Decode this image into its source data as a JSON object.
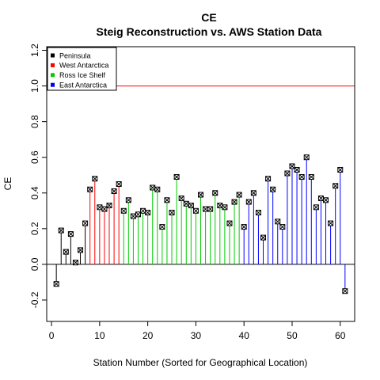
{
  "chart_data": {
    "type": "stem",
    "title": "CE",
    "subtitle": "Steig Reconstruction vs. AWS Station Data",
    "xlabel": "Station Number (Sorted for Geographical Location)",
    "ylabel": "CE",
    "xlim": [
      -1,
      63
    ],
    "ylim": [
      -0.32,
      1.22
    ],
    "xticks": [
      0,
      10,
      20,
      30,
      40,
      50,
      60
    ],
    "yticks": [
      -0.2,
      0.0,
      0.2,
      0.4,
      0.6,
      0.8,
      1.0,
      1.2
    ],
    "xtick_labels": [
      "0",
      "10",
      "20",
      "30",
      "40",
      "50",
      "60"
    ],
    "ytick_labels": [
      "-0.2",
      "0.0",
      "0.2",
      "0.4",
      "0.6",
      "0.8",
      "1.0",
      "1.2"
    ],
    "hlines": [
      {
        "y": 0,
        "color": "#000000"
      },
      {
        "y": 1,
        "color": "#ff0000"
      }
    ],
    "legend": {
      "position": "top-left",
      "entries": [
        {
          "label": "Peninsula",
          "color": "#000000"
        },
        {
          "label": "West Antarctica",
          "color": "#ff0000"
        },
        {
          "label": "Ross Ice Shelf",
          "color": "#00cd00"
        },
        {
          "label": "East Antarctica",
          "color": "#0000ff"
        }
      ]
    },
    "colors": {
      "Peninsula": "#000000",
      "West Antarctica": "#ff0000",
      "Ross Ice Shelf": "#00cd00",
      "East Antarctica": "#0000ff"
    },
    "points": [
      {
        "x": 1,
        "y": -0.11,
        "group": "Peninsula"
      },
      {
        "x": 2,
        "y": 0.19,
        "group": "Peninsula"
      },
      {
        "x": 3,
        "y": 0.07,
        "group": "Peninsula"
      },
      {
        "x": 4,
        "y": 0.17,
        "group": "Peninsula"
      },
      {
        "x": 5,
        "y": 0.01,
        "group": "Peninsula"
      },
      {
        "x": 6,
        "y": 0.08,
        "group": "Peninsula"
      },
      {
        "x": 7,
        "y": 0.23,
        "group": "Peninsula"
      },
      {
        "x": 8,
        "y": 0.42,
        "group": "West Antarctica"
      },
      {
        "x": 9,
        "y": 0.48,
        "group": "West Antarctica"
      },
      {
        "x": 10,
        "y": 0.32,
        "group": "West Antarctica"
      },
      {
        "x": 11,
        "y": 0.31,
        "group": "West Antarctica"
      },
      {
        "x": 12,
        "y": 0.33,
        "group": "West Antarctica"
      },
      {
        "x": 13,
        "y": 0.41,
        "group": "West Antarctica"
      },
      {
        "x": 14,
        "y": 0.45,
        "group": "West Antarctica"
      },
      {
        "x": 15,
        "y": 0.3,
        "group": "Ross Ice Shelf"
      },
      {
        "x": 16,
        "y": 0.36,
        "group": "Ross Ice Shelf"
      },
      {
        "x": 17,
        "y": 0.27,
        "group": "Ross Ice Shelf"
      },
      {
        "x": 18,
        "y": 0.28,
        "group": "Ross Ice Shelf"
      },
      {
        "x": 19,
        "y": 0.3,
        "group": "Ross Ice Shelf"
      },
      {
        "x": 20,
        "y": 0.29,
        "group": "Ross Ice Shelf"
      },
      {
        "x": 21,
        "y": 0.43,
        "group": "Ross Ice Shelf"
      },
      {
        "x": 22,
        "y": 0.42,
        "group": "Ross Ice Shelf"
      },
      {
        "x": 23,
        "y": 0.21,
        "group": "Ross Ice Shelf"
      },
      {
        "x": 24,
        "y": 0.36,
        "group": "Ross Ice Shelf"
      },
      {
        "x": 25,
        "y": 0.29,
        "group": "Ross Ice Shelf"
      },
      {
        "x": 26,
        "y": 0.49,
        "group": "Ross Ice Shelf"
      },
      {
        "x": 27,
        "y": 0.37,
        "group": "Ross Ice Shelf"
      },
      {
        "x": 28,
        "y": 0.34,
        "group": "Ross Ice Shelf"
      },
      {
        "x": 29,
        "y": 0.33,
        "group": "Ross Ice Shelf"
      },
      {
        "x": 30,
        "y": 0.3,
        "group": "Ross Ice Shelf"
      },
      {
        "x": 31,
        "y": 0.39,
        "group": "Ross Ice Shelf"
      },
      {
        "x": 32,
        "y": 0.31,
        "group": "Ross Ice Shelf"
      },
      {
        "x": 33,
        "y": 0.31,
        "group": "Ross Ice Shelf"
      },
      {
        "x": 34,
        "y": 0.4,
        "group": "Ross Ice Shelf"
      },
      {
        "x": 35,
        "y": 0.33,
        "group": "Ross Ice Shelf"
      },
      {
        "x": 36,
        "y": 0.32,
        "group": "Ross Ice Shelf"
      },
      {
        "x": 37,
        "y": 0.23,
        "group": "Ross Ice Shelf"
      },
      {
        "x": 38,
        "y": 0.35,
        "group": "Ross Ice Shelf"
      },
      {
        "x": 39,
        "y": 0.39,
        "group": "Ross Ice Shelf"
      },
      {
        "x": 40,
        "y": 0.21,
        "group": "East Antarctica"
      },
      {
        "x": 41,
        "y": 0.35,
        "group": "East Antarctica"
      },
      {
        "x": 42,
        "y": 0.4,
        "group": "East Antarctica"
      },
      {
        "x": 43,
        "y": 0.29,
        "group": "East Antarctica"
      },
      {
        "x": 44,
        "y": 0.15,
        "group": "East Antarctica"
      },
      {
        "x": 45,
        "y": 0.48,
        "group": "East Antarctica"
      },
      {
        "x": 46,
        "y": 0.42,
        "group": "East Antarctica"
      },
      {
        "x": 47,
        "y": 0.24,
        "group": "East Antarctica"
      },
      {
        "x": 48,
        "y": 0.21,
        "group": "East Antarctica"
      },
      {
        "x": 49,
        "y": 0.51,
        "group": "East Antarctica"
      },
      {
        "x": 50,
        "y": 0.55,
        "group": "East Antarctica"
      },
      {
        "x": 51,
        "y": 0.53,
        "group": "East Antarctica"
      },
      {
        "x": 52,
        "y": 0.49,
        "group": "East Antarctica"
      },
      {
        "x": 53,
        "y": 0.6,
        "group": "East Antarctica"
      },
      {
        "x": 54,
        "y": 0.49,
        "group": "East Antarctica"
      },
      {
        "x": 55,
        "y": 0.32,
        "group": "East Antarctica"
      },
      {
        "x": 56,
        "y": 0.37,
        "group": "East Antarctica"
      },
      {
        "x": 57,
        "y": 0.36,
        "group": "East Antarctica"
      },
      {
        "x": 58,
        "y": 0.23,
        "group": "East Antarctica"
      },
      {
        "x": 59,
        "y": 0.44,
        "group": "East Antarctica"
      },
      {
        "x": 60,
        "y": 0.53,
        "group": "East Antarctica"
      },
      {
        "x": 61,
        "y": -0.15,
        "group": "East Antarctica"
      }
    ]
  }
}
